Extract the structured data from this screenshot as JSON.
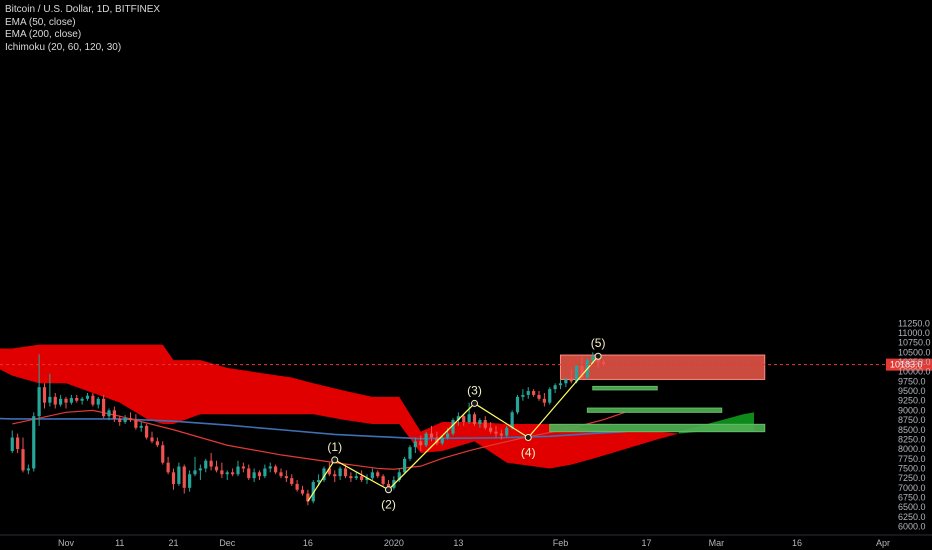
{
  "legend": {
    "symbol": "Bitcoin / U.S. Dollar, 1D, BITFINEX",
    "ema50": "EMA (50, close)",
    "ema200": "EMA (200, close)",
    "ichimoku": "Ichimoku (20, 60, 120, 30)"
  },
  "colors": {
    "background": "#000000",
    "candle_up": "#26a69a",
    "candle_down": "#ef5350",
    "cloud_bear": "#e00000",
    "cloud_bull": "#0e8a1a",
    "ema50": "#e53935",
    "ema200": "#3f6fb5",
    "wave": "#ffff66",
    "box_red": "#f0584a",
    "box_green": "#4caf50",
    "price_line": "#e53935",
    "axis_text": "#b2b5be"
  },
  "chart_data": {
    "type": "candlestick",
    "xlabel": "",
    "ylabel": "",
    "ylim": [
      6000,
      11500
    ],
    "x_ticks": [
      {
        "label": "Nov",
        "day": 0
      },
      {
        "label": "11",
        "day": 10
      },
      {
        "label": "21",
        "day": 20
      },
      {
        "label": "Dec",
        "day": 30
      },
      {
        "label": "16",
        "day": 45
      },
      {
        "label": "2020",
        "day": 61
      },
      {
        "label": "13",
        "day": 73
      },
      {
        "label": "Feb",
        "day": 92
      },
      {
        "label": "17",
        "day": 108
      },
      {
        "label": "Mar",
        "day": 121
      },
      {
        "label": "16",
        "day": 136
      },
      {
        "label": "Apr",
        "day": 152
      }
    ],
    "y_ticks": [
      6000,
      6250,
      6500,
      6750,
      7000,
      7250,
      7500,
      7750,
      8000,
      8250,
      8500,
      8750,
      9000,
      9250,
      9500,
      9750,
      10000,
      10250,
      10500,
      10750,
      11000,
      11250
    ],
    "last_price": "10183.0",
    "last_price_value": 10183,
    "candles": [
      {
        "day": -10,
        "o": 7950,
        "h": 8480,
        "l": 7900,
        "c": 8300
      },
      {
        "day": -9,
        "o": 8300,
        "h": 8400,
        "l": 7900,
        "c": 8000
      },
      {
        "day": -8,
        "o": 8000,
        "h": 8300,
        "l": 7400,
        "c": 7450
      },
      {
        "day": -7,
        "o": 7450,
        "h": 7600,
        "l": 7350,
        "c": 7500
      },
      {
        "day": -6,
        "o": 7500,
        "h": 8950,
        "l": 7420,
        "c": 8850
      },
      {
        "day": -5,
        "o": 8850,
        "h": 10450,
        "l": 8600,
        "c": 9600
      },
      {
        "day": -4,
        "o": 9600,
        "h": 9700,
        "l": 9050,
        "c": 9200
      },
      {
        "day": -3,
        "o": 9200,
        "h": 9950,
        "l": 9100,
        "c": 9350
      },
      {
        "day": -2,
        "o": 9350,
        "h": 9450,
        "l": 9050,
        "c": 9150
      },
      {
        "day": -1,
        "o": 9150,
        "h": 9400,
        "l": 9100,
        "c": 9300
      },
      {
        "day": 0,
        "o": 9300,
        "h": 9350,
        "l": 9050,
        "c": 9200
      },
      {
        "day": 1,
        "o": 9200,
        "h": 9400,
        "l": 9150,
        "c": 9320
      },
      {
        "day": 2,
        "o": 9320,
        "h": 9400,
        "l": 9200,
        "c": 9250
      },
      {
        "day": 3,
        "o": 9250,
        "h": 9350,
        "l": 9150,
        "c": 9300
      },
      {
        "day": 4,
        "o": 9300,
        "h": 9450,
        "l": 9250,
        "c": 9380
      },
      {
        "day": 5,
        "o": 9380,
        "h": 9450,
        "l": 9100,
        "c": 9150
      },
      {
        "day": 6,
        "o": 9150,
        "h": 9350,
        "l": 9050,
        "c": 9300
      },
      {
        "day": 7,
        "o": 9300,
        "h": 9400,
        "l": 8800,
        "c": 8850
      },
      {
        "day": 8,
        "o": 8850,
        "h": 9050,
        "l": 8750,
        "c": 9000
      },
      {
        "day": 9,
        "o": 9000,
        "h": 9100,
        "l": 8700,
        "c": 8780
      },
      {
        "day": 10,
        "o": 8780,
        "h": 8850,
        "l": 8600,
        "c": 8700
      },
      {
        "day": 11,
        "o": 8700,
        "h": 8880,
        "l": 8650,
        "c": 8800
      },
      {
        "day": 12,
        "o": 8800,
        "h": 8950,
        "l": 8700,
        "c": 8750
      },
      {
        "day": 13,
        "o": 8750,
        "h": 8900,
        "l": 8500,
        "c": 8550
      },
      {
        "day": 14,
        "o": 8550,
        "h": 8700,
        "l": 8450,
        "c": 8600
      },
      {
        "day": 15,
        "o": 8600,
        "h": 8650,
        "l": 8250,
        "c": 8300
      },
      {
        "day": 16,
        "o": 8300,
        "h": 8450,
        "l": 8150,
        "c": 8200
      },
      {
        "day": 17,
        "o": 8200,
        "h": 8300,
        "l": 8050,
        "c": 8100
      },
      {
        "day": 18,
        "o": 8100,
        "h": 8200,
        "l": 7600,
        "c": 7650
      },
      {
        "day": 19,
        "o": 7650,
        "h": 7800,
        "l": 7350,
        "c": 7400
      },
      {
        "day": 20,
        "o": 7400,
        "h": 7500,
        "l": 6950,
        "c": 7100
      },
      {
        "day": 21,
        "o": 7100,
        "h": 7650,
        "l": 7050,
        "c": 7550
      },
      {
        "day": 22,
        "o": 7550,
        "h": 7600,
        "l": 6850,
        "c": 7000
      },
      {
        "day": 23,
        "o": 7000,
        "h": 7450,
        "l": 6900,
        "c": 7350
      },
      {
        "day": 24,
        "o": 7350,
        "h": 7800,
        "l": 7300,
        "c": 7450
      },
      {
        "day": 25,
        "o": 7450,
        "h": 7600,
        "l": 7200,
        "c": 7500
      },
      {
        "day": 26,
        "o": 7500,
        "h": 7750,
        "l": 7400,
        "c": 7700
      },
      {
        "day": 27,
        "o": 7700,
        "h": 7900,
        "l": 7450,
        "c": 7550
      },
      {
        "day": 28,
        "o": 7550,
        "h": 7700,
        "l": 7400,
        "c": 7450
      },
      {
        "day": 29,
        "o": 7450,
        "h": 7650,
        "l": 7250,
        "c": 7350
      },
      {
        "day": 30,
        "o": 7350,
        "h": 7450,
        "l": 7200,
        "c": 7400
      },
      {
        "day": 31,
        "o": 7400,
        "h": 7500,
        "l": 7300,
        "c": 7350
      },
      {
        "day": 32,
        "o": 7350,
        "h": 7700,
        "l": 7300,
        "c": 7550
      },
      {
        "day": 33,
        "o": 7550,
        "h": 7650,
        "l": 7400,
        "c": 7500
      },
      {
        "day": 34,
        "o": 7500,
        "h": 7600,
        "l": 7200,
        "c": 7250
      },
      {
        "day": 35,
        "o": 7250,
        "h": 7500,
        "l": 7150,
        "c": 7400
      },
      {
        "day": 36,
        "o": 7400,
        "h": 7450,
        "l": 7200,
        "c": 7300
      },
      {
        "day": 37,
        "o": 7300,
        "h": 7600,
        "l": 7250,
        "c": 7500
      },
      {
        "day": 38,
        "o": 7500,
        "h": 7650,
        "l": 7400,
        "c": 7550
      },
      {
        "day": 39,
        "o": 7550,
        "h": 7600,
        "l": 7350,
        "c": 7400
      },
      {
        "day": 40,
        "o": 7400,
        "h": 7500,
        "l": 7250,
        "c": 7300
      },
      {
        "day": 41,
        "o": 7300,
        "h": 7450,
        "l": 7150,
        "c": 7250
      },
      {
        "day": 42,
        "o": 7250,
        "h": 7350,
        "l": 7050,
        "c": 7100
      },
      {
        "day": 43,
        "o": 7100,
        "h": 7200,
        "l": 6900,
        "c": 6950
      },
      {
        "day": 44,
        "o": 6950,
        "h": 7050,
        "l": 6800,
        "c": 6850
      },
      {
        "day": 45,
        "o": 6850,
        "h": 6950,
        "l": 6550,
        "c": 6650
      },
      {
        "day": 46,
        "o": 6650,
        "h": 7200,
        "l": 6600,
        "c": 7150
      },
      {
        "day": 47,
        "o": 7150,
        "h": 7350,
        "l": 7050,
        "c": 7200
      },
      {
        "day": 48,
        "o": 7200,
        "h": 7550,
        "l": 7150,
        "c": 7500
      },
      {
        "day": 49,
        "o": 7500,
        "h": 7650,
        "l": 7300,
        "c": 7350
      },
      {
        "day": 50,
        "o": 7350,
        "h": 7450,
        "l": 7150,
        "c": 7300
      },
      {
        "day": 51,
        "o": 7300,
        "h": 7550,
        "l": 7200,
        "c": 7500
      },
      {
        "day": 52,
        "o": 7500,
        "h": 7600,
        "l": 7250,
        "c": 7300
      },
      {
        "day": 53,
        "o": 7300,
        "h": 7400,
        "l": 7150,
        "c": 7250
      },
      {
        "day": 54,
        "o": 7250,
        "h": 7400,
        "l": 7200,
        "c": 7300
      },
      {
        "day": 55,
        "o": 7300,
        "h": 7450,
        "l": 7150,
        "c": 7200
      },
      {
        "day": 56,
        "o": 7200,
        "h": 7350,
        "l": 7100,
        "c": 7250
      },
      {
        "day": 57,
        "o": 7250,
        "h": 7500,
        "l": 7200,
        "c": 7400
      },
      {
        "day": 58,
        "o": 7400,
        "h": 7450,
        "l": 7250,
        "c": 7300
      },
      {
        "day": 59,
        "o": 7300,
        "h": 7350,
        "l": 7050,
        "c": 7100
      },
      {
        "day": 60,
        "o": 7100,
        "h": 7200,
        "l": 6950,
        "c": 7000
      },
      {
        "day": 61,
        "o": 7000,
        "h": 7300,
        "l": 6950,
        "c": 7200
      },
      {
        "day": 62,
        "o": 7200,
        "h": 7500,
        "l": 7150,
        "c": 7400
      },
      {
        "day": 63,
        "o": 7400,
        "h": 7800,
        "l": 7350,
        "c": 7750
      },
      {
        "day": 64,
        "o": 7750,
        "h": 8100,
        "l": 7700,
        "c": 8050
      },
      {
        "day": 65,
        "o": 8050,
        "h": 8300,
        "l": 7900,
        "c": 8200
      },
      {
        "day": 66,
        "o": 8200,
        "h": 8350,
        "l": 7950,
        "c": 8100
      },
      {
        "day": 67,
        "o": 8100,
        "h": 8450,
        "l": 8050,
        "c": 8400
      },
      {
        "day": 68,
        "o": 8400,
        "h": 8600,
        "l": 8200,
        "c": 8300
      },
      {
        "day": 69,
        "o": 8300,
        "h": 8450,
        "l": 8100,
        "c": 8150
      },
      {
        "day": 70,
        "o": 8150,
        "h": 8350,
        "l": 8100,
        "c": 8300
      },
      {
        "day": 71,
        "o": 8300,
        "h": 8550,
        "l": 8250,
        "c": 8400
      },
      {
        "day": 72,
        "o": 8400,
        "h": 8800,
        "l": 8350,
        "c": 8750
      },
      {
        "day": 73,
        "o": 8750,
        "h": 8950,
        "l": 8600,
        "c": 8850
      },
      {
        "day": 74,
        "o": 8850,
        "h": 8900,
        "l": 8600,
        "c": 8700
      },
      {
        "day": 75,
        "o": 8700,
        "h": 9200,
        "l": 8650,
        "c": 8900
      },
      {
        "day": 76,
        "o": 8900,
        "h": 8950,
        "l": 8600,
        "c": 8650
      },
      {
        "day": 77,
        "o": 8650,
        "h": 8800,
        "l": 8550,
        "c": 8750
      },
      {
        "day": 78,
        "o": 8750,
        "h": 8850,
        "l": 8500,
        "c": 8550
      },
      {
        "day": 79,
        "o": 8550,
        "h": 8700,
        "l": 8400,
        "c": 8450
      },
      {
        "day": 80,
        "o": 8450,
        "h": 8600,
        "l": 8300,
        "c": 8400
      },
      {
        "day": 81,
        "o": 8400,
        "h": 8500,
        "l": 8250,
        "c": 8350
      },
      {
        "day": 82,
        "o": 8350,
        "h": 8600,
        "l": 8300,
        "c": 8550
      },
      {
        "day": 83,
        "o": 8550,
        "h": 9000,
        "l": 8500,
        "c": 8950
      },
      {
        "day": 84,
        "o": 8950,
        "h": 9400,
        "l": 8900,
        "c": 9350
      },
      {
        "day": 85,
        "o": 9350,
        "h": 9550,
        "l": 9250,
        "c": 9400
      },
      {
        "day": 86,
        "o": 9400,
        "h": 9600,
        "l": 9300,
        "c": 9500
      },
      {
        "day": 87,
        "o": 9500,
        "h": 9550,
        "l": 9350,
        "c": 9400
      },
      {
        "day": 88,
        "o": 9400,
        "h": 9500,
        "l": 9250,
        "c": 9300
      },
      {
        "day": 89,
        "o": 9300,
        "h": 9450,
        "l": 9100,
        "c": 9200
      },
      {
        "day": 90,
        "o": 9200,
        "h": 9600,
        "l": 9150,
        "c": 9550
      },
      {
        "day": 91,
        "o": 9550,
        "h": 9700,
        "l": 9450,
        "c": 9650
      },
      {
        "day": 92,
        "o": 9650,
        "h": 9800,
        "l": 9550,
        "c": 9700
      },
      {
        "day": 93,
        "o": 9700,
        "h": 9850,
        "l": 9600,
        "c": 9800
      },
      {
        "day": 94,
        "o": 9800,
        "h": 10050,
        "l": 9700,
        "c": 9750
      },
      {
        "day": 95,
        "o": 9750,
        "h": 10200,
        "l": 9700,
        "c": 10150
      },
      {
        "day": 96,
        "o": 10150,
        "h": 10400,
        "l": 9800,
        "c": 9850
      },
      {
        "day": 97,
        "o": 9850,
        "h": 10350,
        "l": 9800,
        "c": 10300
      },
      {
        "day": 98,
        "o": 10300,
        "h": 10500,
        "l": 10200,
        "c": 10400
      },
      {
        "day": 99,
        "o": 10400,
        "h": 10450,
        "l": 10100,
        "c": 10250
      },
      {
        "day": 100,
        "o": 10250,
        "h": 10300,
        "l": 10150,
        "c": 10183
      }
    ],
    "ema50": [
      [
        -10,
        8650
      ],
      [
        0,
        8950
      ],
      [
        5,
        9000
      ],
      [
        10,
        8850
      ],
      [
        20,
        8500
      ],
      [
        30,
        8100
      ],
      [
        40,
        7850
      ],
      [
        50,
        7650
      ],
      [
        58,
        7500
      ],
      [
        61,
        7480
      ],
      [
        66,
        7560
      ],
      [
        70,
        7760
      ],
      [
        75,
        7960
      ],
      [
        80,
        8130
      ],
      [
        85,
        8290
      ],
      [
        90,
        8430
      ],
      [
        95,
        8580
      ],
      [
        100,
        8760
      ],
      [
        104,
        8950
      ]
    ],
    "ema200": [
      [
        -20,
        8820
      ],
      [
        -10,
        8780
      ],
      [
        0,
        8780
      ],
      [
        10,
        8780
      ],
      [
        20,
        8720
      ],
      [
        30,
        8620
      ],
      [
        40,
        8500
      ],
      [
        50,
        8380
      ],
      [
        60,
        8310
      ],
      [
        66,
        8270
      ],
      [
        70,
        8280
      ],
      [
        80,
        8290
      ],
      [
        90,
        8330
      ],
      [
        100,
        8420
      ],
      [
        104,
        8450
      ]
    ],
    "ichimoku_cloud": [
      {
        "day": -20,
        "top": 10600,
        "bottom": 10600
      },
      {
        "day": -10,
        "top": 10600,
        "bottom": 9900
      },
      {
        "day": -5,
        "top": 10700,
        "bottom": 9700
      },
      {
        "day": 0,
        "top": 10700,
        "bottom": 9700
      },
      {
        "day": 10,
        "top": 10700,
        "bottom": 9200
      },
      {
        "day": 15,
        "top": 10700,
        "bottom": 8780
      },
      {
        "day": 18,
        "top": 10700,
        "bottom": 8650
      },
      {
        "day": 20,
        "top": 10300,
        "bottom": 8650
      },
      {
        "day": 25,
        "top": 10300,
        "bottom": 8900
      },
      {
        "day": 30,
        "top": 10100,
        "bottom": 8900
      },
      {
        "day": 37,
        "top": 9950,
        "bottom": 8900
      },
      {
        "day": 42,
        "top": 9850,
        "bottom": 8900
      },
      {
        "day": 46,
        "top": 9700,
        "bottom": 8900
      },
      {
        "day": 52,
        "top": 9500,
        "bottom": 8750
      },
      {
        "day": 57,
        "top": 9350,
        "bottom": 8650
      },
      {
        "day": 62,
        "top": 9350,
        "bottom": 8650
      },
      {
        "day": 66,
        "top": 8450,
        "bottom": 7900
      },
      {
        "day": 70,
        "top": 8700,
        "bottom": 7950
      },
      {
        "day": 76,
        "top": 8700,
        "bottom": 8200
      },
      {
        "day": 82,
        "top": 8650,
        "bottom": 7650
      },
      {
        "day": 90,
        "top": 8650,
        "bottom": 7500
      },
      {
        "day": 94,
        "top": 8600,
        "bottom": 7600
      },
      {
        "day": 98,
        "top": 8500,
        "bottom": 7750
      },
      {
        "day": 104,
        "top": 8450,
        "bottom": 8000
      },
      {
        "day": 110,
        "top": 8450,
        "bottom": 8250
      },
      {
        "day": 114,
        "top": 8400,
        "bottom": 8400
      }
    ],
    "ichimoku_cloud_bull": [
      {
        "day": 114,
        "top": 8450,
        "bottom": 8400
      },
      {
        "day": 118,
        "top": 8600,
        "bottom": 8450
      },
      {
        "day": 122,
        "top": 8750,
        "bottom": 8450
      },
      {
        "day": 126,
        "top": 8900,
        "bottom": 8450
      },
      {
        "day": 128,
        "top": 8950,
        "bottom": 8450
      }
    ],
    "wave_points": [
      {
        "label": "(1)",
        "day": 50,
        "price": 7720,
        "label_pos": "above"
      },
      {
        "label": "(2)",
        "day": 60,
        "price": 6950,
        "label_pos": "below"
      },
      {
        "label": "(3)",
        "day": 76,
        "price": 9180,
        "label_pos": "above"
      },
      {
        "label": "(4)",
        "day": 86,
        "price": 8300,
        "label_pos": "below"
      },
      {
        "label": "(5)",
        "day": 99,
        "price": 10400,
        "label_pos": "above"
      }
    ],
    "wave_start": {
      "day": 45,
      "price": 6650
    },
    "zones": [
      {
        "kind": "resistance",
        "day_from": 92,
        "day_to": 130,
        "price_from": 9800,
        "price_to": 10430
      },
      {
        "kind": "support",
        "day_from": 98,
        "day_to": 110,
        "price_from": 9530,
        "price_to": 9620
      },
      {
        "kind": "support",
        "day_from": 97,
        "day_to": 122,
        "price_from": 8950,
        "price_to": 9060
      },
      {
        "kind": "support",
        "day_from": 90,
        "day_to": 130,
        "price_from": 8450,
        "price_to": 8640
      }
    ]
  }
}
